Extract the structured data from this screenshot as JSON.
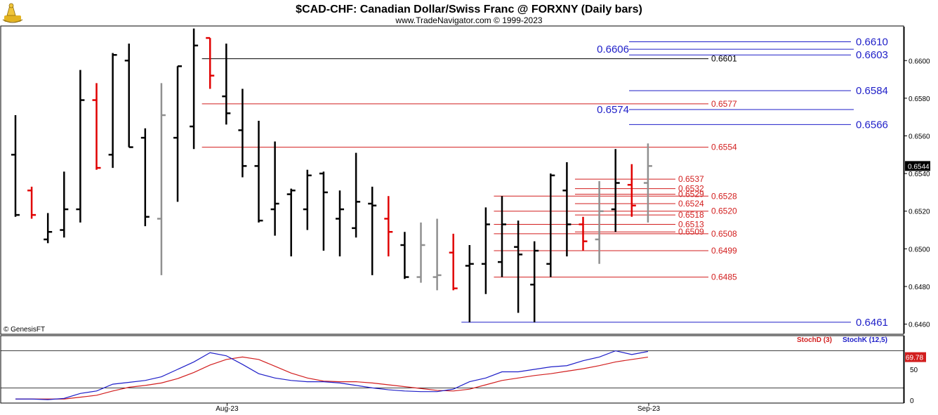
{
  "title": "$CAD-CHF:  Canadian Dollar/Swiss Franc @ FORXNY  (Daily bars)",
  "subtitle": "www.TradeNavigator.com © 1999-2023",
  "copyright": "© GenesisFT",
  "colors": {
    "up": "#000000",
    "down": "#e00000",
    "inside": "#909090",
    "blue": "#1e1ec8",
    "red": "#d21e1e",
    "stochD": "#d21e1e",
    "stochK": "#1e1ec8"
  },
  "chart_data": [
    {
      "type": "ohlc",
      "title": "$CAD-CHF:  Canadian Dollar/Swiss Franc @ FORXNY  (Daily bars)",
      "ylim": [
        0.6455,
        0.6618
      ],
      "y_ticks": [
        "0.6460",
        "0.6480",
        "0.6500",
        "0.6520",
        "0.6540",
        "0.6560",
        "0.6580",
        "0.6600"
      ],
      "x_labels": [
        {
          "label": "Aug-23",
          "bar": 14
        },
        {
          "label": "Sep-23",
          "bar": 40
        }
      ],
      "last_price": "0.6544",
      "bars": [
        {
          "o": 0.655,
          "h": 0.6571,
          "l": 0.6517,
          "c": 0.6518,
          "k": "up"
        },
        {
          "o": 0.6531,
          "h": 0.6533,
          "l": 0.6516,
          "c": 0.6518,
          "k": "down"
        },
        {
          "o": 0.6505,
          "h": 0.6519,
          "l": 0.6503,
          "c": 0.6509,
          "k": "up"
        },
        {
          "o": 0.651,
          "h": 0.6541,
          "l": 0.6506,
          "c": 0.6521,
          "k": "up"
        },
        {
          "o": 0.6521,
          "h": 0.6595,
          "l": 0.6514,
          "c": 0.6579,
          "k": "up"
        },
        {
          "o": 0.6579,
          "h": 0.6588,
          "l": 0.6542,
          "c": 0.6543,
          "k": "down"
        },
        {
          "o": 0.655,
          "h": 0.6604,
          "l": 0.6543,
          "c": 0.6603,
          "k": "up"
        },
        {
          "o": 0.66,
          "h": 0.6609,
          "l": 0.6554,
          "c": 0.6554,
          "k": "up"
        },
        {
          "o": 0.6559,
          "h": 0.6564,
          "l": 0.6512,
          "c": 0.6517,
          "k": "up"
        },
        {
          "o": 0.6516,
          "h": 0.6588,
          "l": 0.6486,
          "c": 0.6571,
          "k": "inside"
        },
        {
          "o": 0.6559,
          "h": 0.6597,
          "l": 0.6525,
          "c": 0.6597,
          "k": "up"
        },
        {
          "o": 0.6565,
          "h": 0.6617,
          "l": 0.6553,
          "c": 0.6608,
          "k": "up"
        },
        {
          "o": 0.6612,
          "h": 0.6612,
          "l": 0.6585,
          "c": 0.6592,
          "k": "down"
        },
        {
          "o": 0.6581,
          "h": 0.6609,
          "l": 0.6566,
          "c": 0.6572,
          "k": "up"
        },
        {
          "o": 0.6563,
          "h": 0.6585,
          "l": 0.6538,
          "c": 0.6544,
          "k": "up"
        },
        {
          "o": 0.6544,
          "h": 0.6568,
          "l": 0.6514,
          "c": 0.6515,
          "k": "up"
        },
        {
          "o": 0.6521,
          "h": 0.6557,
          "l": 0.6507,
          "c": 0.6524,
          "k": "up"
        },
        {
          "o": 0.6529,
          "h": 0.6532,
          "l": 0.6496,
          "c": 0.6531,
          "k": "up"
        },
        {
          "o": 0.6521,
          "h": 0.6542,
          "l": 0.651,
          "c": 0.6539,
          "k": "up"
        },
        {
          "o": 0.654,
          "h": 0.6541,
          "l": 0.6499,
          "c": 0.653,
          "k": "up"
        },
        {
          "o": 0.6516,
          "h": 0.6531,
          "l": 0.6496,
          "c": 0.6521,
          "k": "up"
        },
        {
          "o": 0.6511,
          "h": 0.6551,
          "l": 0.6506,
          "c": 0.6525,
          "k": "up"
        },
        {
          "o": 0.6524,
          "h": 0.6533,
          "l": 0.6486,
          "c": 0.6523,
          "k": "up"
        },
        {
          "o": 0.6516,
          "h": 0.6528,
          "l": 0.6496,
          "c": 0.6509,
          "k": "down"
        },
        {
          "o": 0.6502,
          "h": 0.6509,
          "l": 0.6484,
          "c": 0.6485,
          "k": "up"
        },
        {
          "o": 0.6485,
          "h": 0.6514,
          "l": 0.6482,
          "c": 0.6502,
          "k": "inside"
        },
        {
          "o": 0.6485,
          "h": 0.6516,
          "l": 0.6478,
          "c": 0.6486,
          "k": "inside"
        },
        {
          "o": 0.6498,
          "h": 0.6508,
          "l": 0.6478,
          "c": 0.6479,
          "k": "down"
        },
        {
          "o": 0.6491,
          "h": 0.6502,
          "l": 0.6461,
          "c": 0.6492,
          "k": "up"
        },
        {
          "o": 0.6492,
          "h": 0.6522,
          "l": 0.6476,
          "c": 0.6513,
          "k": "up"
        },
        {
          "o": 0.6493,
          "h": 0.6528,
          "l": 0.6485,
          "c": 0.6513,
          "k": "up"
        },
        {
          "o": 0.6501,
          "h": 0.6515,
          "l": 0.6466,
          "c": 0.6497,
          "k": "up"
        },
        {
          "o": 0.6481,
          "h": 0.6504,
          "l": 0.6461,
          "c": 0.6499,
          "k": "up"
        },
        {
          "o": 0.6492,
          "h": 0.654,
          "l": 0.6485,
          "c": 0.6539,
          "k": "up"
        },
        {
          "o": 0.6531,
          "h": 0.6546,
          "l": 0.6496,
          "c": 0.6513,
          "k": "up"
        },
        {
          "o": 0.6513,
          "h": 0.6517,
          "l": 0.6499,
          "c": 0.6504,
          "k": "down"
        },
        {
          "o": 0.6505,
          "h": 0.6536,
          "l": 0.6492,
          "c": 0.652,
          "k": "inside"
        },
        {
          "o": 0.6521,
          "h": 0.6553,
          "l": 0.6509,
          "c": 0.6535,
          "k": "up"
        },
        {
          "o": 0.6534,
          "h": 0.6545,
          "l": 0.6517,
          "c": 0.6523,
          "k": "down"
        },
        {
          "o": 0.6535,
          "h": 0.6556,
          "l": 0.6514,
          "c": 0.6544,
          "k": "inside"
        }
      ],
      "levels": [
        {
          "value": 0.661,
          "label": "0.6610",
          "color": "blue",
          "from_bar": 34.5,
          "label_pos": "right"
        },
        {
          "value": 0.6606,
          "label": "0.6606",
          "color": "blue",
          "from_bar": 34.5,
          "label_pos": "left"
        },
        {
          "value": 0.6603,
          "label": "0.6603",
          "color": "blue",
          "from_bar": 34.5,
          "label_pos": "right"
        },
        {
          "value": 0.6601,
          "label": "0.6601",
          "color": "black",
          "from_bar": 11.5,
          "label_pos": "mid"
        },
        {
          "value": 0.6584,
          "label": "0.6584",
          "color": "blue",
          "from_bar": 34.5,
          "label_pos": "right"
        },
        {
          "value": 0.6577,
          "label": "0.6577",
          "color": "red",
          "from_bar": 11.5,
          "label_pos": "mid"
        },
        {
          "value": 0.6574,
          "label": "0.6574",
          "color": "blue",
          "from_bar": 34.5,
          "label_pos": "left"
        },
        {
          "value": 0.6566,
          "label": "0.6566",
          "color": "blue",
          "from_bar": 34.5,
          "label_pos": "right"
        },
        {
          "value": 0.6554,
          "label": "0.6554",
          "color": "red",
          "from_bar": 11.5,
          "label_pos": "mid"
        },
        {
          "value": 0.6537,
          "label": "0.6537",
          "color": "red",
          "from_bar": 34.5,
          "label_pos": "near"
        },
        {
          "value": 0.6532,
          "label": "0.6532",
          "color": "red",
          "from_bar": 34.5,
          "label_pos": "near"
        },
        {
          "value": 0.6529,
          "label": "0.6529",
          "color": "red",
          "from_bar": 34.5,
          "label_pos": "near"
        },
        {
          "value": 0.6528,
          "label": "0.6528",
          "color": "red",
          "from_bar": 29.5,
          "label_pos": "mid"
        },
        {
          "value": 0.6524,
          "label": "0.6524",
          "color": "red",
          "from_bar": 34.5,
          "label_pos": "near"
        },
        {
          "value": 0.652,
          "label": "0.6520",
          "color": "red",
          "from_bar": 29.5,
          "label_pos": "mid"
        },
        {
          "value": 0.6518,
          "label": "0.6518",
          "color": "red",
          "from_bar": 34.5,
          "label_pos": "near"
        },
        {
          "value": 0.6513,
          "label": "0.6513",
          "color": "red",
          "from_bar": 29.5,
          "label_pos": "near"
        },
        {
          "value": 0.6509,
          "label": "0.6509",
          "color": "red",
          "from_bar": 34.5,
          "label_pos": "near"
        },
        {
          "value": 0.6508,
          "label": "0.6508",
          "color": "red",
          "from_bar": 29.5,
          "label_pos": "mid"
        },
        {
          "value": 0.6499,
          "label": "0.6499",
          "color": "red",
          "from_bar": 29.5,
          "label_pos": "mid"
        },
        {
          "value": 0.6485,
          "label": "0.6485",
          "color": "red",
          "from_bar": 29.5,
          "label_pos": "mid"
        },
        {
          "value": 0.6461,
          "label": "0.6461",
          "color": "blue",
          "from_bar": 27.5,
          "label_pos": "right"
        }
      ]
    },
    {
      "type": "line",
      "title": "",
      "ylim": [
        0,
        100
      ],
      "y_ticks": [
        "50",
        "0"
      ],
      "levels": [
        80,
        20
      ],
      "last_value": "69.78",
      "series": [
        {
          "name": "StochD (3)",
          "color": "red",
          "x": [
            0,
            1,
            2,
            3,
            4,
            5,
            6,
            7,
            8,
            9,
            10,
            11,
            12,
            13,
            14,
            15,
            16,
            17,
            18,
            19,
            20,
            21,
            22,
            23,
            24,
            25,
            26,
            27,
            28,
            29,
            30,
            31,
            32,
            33,
            34,
            35,
            36,
            37,
            38,
            39
          ],
          "values": [
            2,
            2,
            2,
            2,
            5,
            8,
            15,
            21,
            24,
            28,
            35,
            45,
            57,
            66,
            70,
            66,
            55,
            44,
            36,
            31,
            30,
            30,
            28,
            25,
            22,
            19,
            16,
            15,
            18,
            25,
            32,
            36,
            40,
            43,
            47,
            51,
            56,
            62,
            66,
            69.78
          ]
        },
        {
          "name": "StochK (12,5)",
          "color": "blue",
          "x": [
            0,
            1,
            2,
            3,
            4,
            5,
            6,
            7,
            8,
            9,
            10,
            11,
            12,
            13,
            14,
            15,
            16,
            17,
            18,
            19,
            20,
            21,
            22,
            23,
            24,
            25,
            26,
            27,
            28,
            29,
            30,
            31,
            32,
            33,
            34,
            35,
            36,
            37,
            38,
            39
          ],
          "values": [
            2,
            2,
            1,
            3,
            11,
            15,
            26,
            29,
            32,
            38,
            50,
            62,
            77,
            72,
            58,
            43,
            36,
            32,
            30,
            30,
            28,
            24,
            20,
            17,
            15,
            14,
            14,
            18,
            30,
            36,
            46,
            46,
            50,
            54,
            56,
            64,
            70,
            80,
            74,
            79
          ]
        }
      ]
    }
  ]
}
